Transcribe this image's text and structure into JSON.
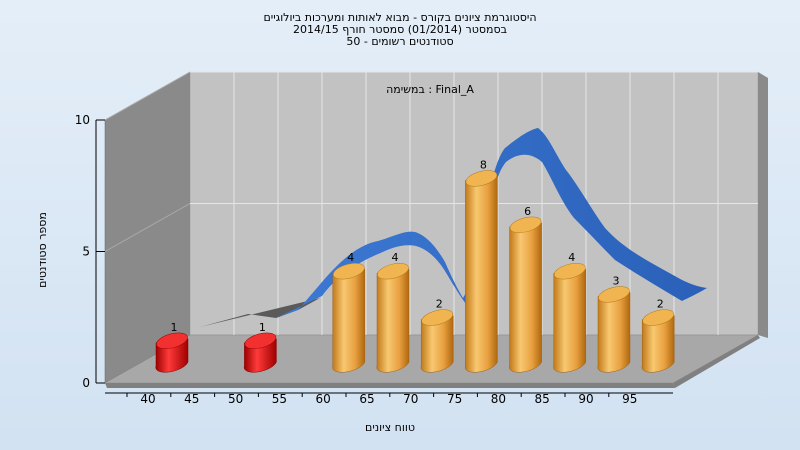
{
  "chart_data": {
    "type": "bar",
    "title_lines": [
      "היסטוגרמת ציונים בקורס - מבוא לאותות ומערכות ביולוגיים",
      "בסמסטר  (01/2014)  סמסטר חורף 2014/15",
      "סטודנטים רשומים - 50"
    ],
    "subtitle": "במשימה : Final_A",
    "xlabel": "טווח ציונים",
    "ylabel": "מספר סטודנטים",
    "ylim": [
      0,
      10
    ],
    "yticks": [
      0,
      5,
      10
    ],
    "x_tick_labels": [
      "40",
      "45",
      "50",
      "55",
      "60",
      "65",
      "70",
      "75",
      "80",
      "85",
      "90",
      "95"
    ],
    "bins": [
      40,
      45,
      50,
      55,
      60,
      65,
      70,
      75,
      80,
      85,
      90,
      95
    ],
    "values": [
      1,
      0,
      1,
      0,
      4,
      4,
      2,
      8,
      6,
      4,
      3,
      2
    ],
    "failing_threshold": 55,
    "colors": {
      "fail": "#dd1010",
      "pass": "#e8a040",
      "curve": "#2f6cc4",
      "curve_shadow": "#5a5a5a"
    },
    "grid": true
  }
}
